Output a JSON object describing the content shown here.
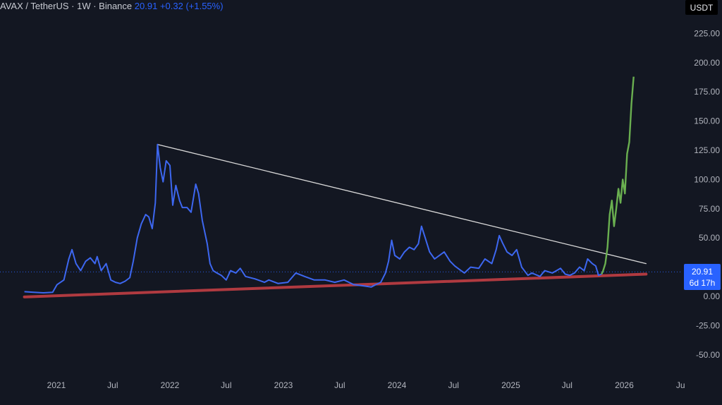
{
  "header": {
    "symbol": "AVAX / TetherUS · 1W · Binance",
    "price": "20.91",
    "change": "+0.32 (+1.55%)"
  },
  "price_scale": {
    "unit": "USDT",
    "last_price": "20.91",
    "countdown": "6d 17h"
  },
  "colors": {
    "background": "#131722",
    "price_line": "#3d67f0",
    "projection": "#6aaf50",
    "support": "#b03a40",
    "resistance": "#d9d9d9",
    "axis_text": "#b2b5be",
    "badge": "#2962ff"
  },
  "chart_data": {
    "type": "line",
    "title": "",
    "xlabel": "",
    "ylabel": "",
    "ylim": [
      -65,
      242
    ],
    "y_ticks": [
      "225.00",
      "200.00",
      "175.00",
      "150.00",
      "125.00",
      "100.00",
      "75.00",
      "50.00",
      "25.00",
      "0.00",
      "-25.00",
      "-50.00"
    ],
    "x_ticks": [
      "2021",
      "Jul",
      "2022",
      "Jul",
      "2023",
      "Jul",
      "2024",
      "Jul",
      "2025",
      "Jul",
      "2026",
      "Ju"
    ],
    "series": [
      {
        "x": [
          "2020-09-20",
          "2020-10-20",
          "2020-11-20",
          "2020-12-20",
          "2021-01-03",
          "2021-01-25",
          "2021-02-10",
          "2021-02-20",
          "2021-03-05",
          "2021-03-20",
          "2021-04-05",
          "2021-04-20",
          "2021-05-05",
          "2021-05-12",
          "2021-05-25",
          "2021-06-10",
          "2021-06-25",
          "2021-07-10",
          "2021-07-25",
          "2021-08-10",
          "2021-08-25",
          "2021-09-05",
          "2021-09-18",
          "2021-10-01",
          "2021-10-15",
          "2021-10-25",
          "2021-11-05",
          "2021-11-15",
          "2021-11-22",
          "2021-12-01",
          "2021-12-10",
          "2021-12-20",
          "2022-01-01",
          "2022-01-10",
          "2022-01-20",
          "2022-02-01",
          "2022-02-10",
          "2022-02-25",
          "2022-03-10",
          "2022-03-25",
          "2022-04-03",
          "2022-04-15",
          "2022-05-01",
          "2022-05-10",
          "2022-05-20",
          "2022-06-01",
          "2022-06-15",
          "2022-07-01",
          "2022-07-15",
          "2022-08-01",
          "2022-08-15",
          "2022-09-01",
          "2022-10-01",
          "2022-11-01",
          "2022-11-15",
          "2022-12-15",
          "2023-01-15",
          "2023-02-10",
          "2023-03-10",
          "2023-04-10",
          "2023-05-15",
          "2023-06-15",
          "2023-07-15",
          "2023-08-15",
          "2023-09-15",
          "2023-10-10",
          "2023-10-25",
          "2023-11-10",
          "2023-11-25",
          "2023-12-05",
          "2023-12-15",
          "2023-12-25",
          "2024-01-10",
          "2024-01-25",
          "2024-02-10",
          "2024-02-25",
          "2024-03-10",
          "2024-03-20",
          "2024-04-01",
          "2024-04-15",
          "2024-05-01",
          "2024-06-01",
          "2024-06-20",
          "2024-07-05",
          "2024-07-25",
          "2024-08-05",
          "2024-08-25",
          "2024-09-20",
          "2024-10-10",
          "2024-11-01",
          "2024-11-15",
          "2024-11-25",
          "2024-12-05",
          "2024-12-20",
          "2025-01-05",
          "2025-01-20",
          "2025-02-05",
          "2025-02-25",
          "2025-03-10",
          "2025-04-05",
          "2025-04-20",
          "2025-05-15",
          "2025-06-10",
          "2025-06-25",
          "2025-07-10",
          "2025-07-25",
          "2025-08-10",
          "2025-08-25",
          "2025-09-05",
          "2025-09-20",
          "2025-10-01",
          "2025-10-10",
          "2025-10-20"
        ],
        "y": [
          4,
          3.5,
          3,
          3.5,
          10,
          14,
          32,
          40,
          28,
          22,
          30,
          33,
          28,
          34,
          22,
          28,
          14,
          12,
          11,
          13,
          16,
          30,
          50,
          62,
          70,
          68,
          58,
          80,
          130,
          110,
          98,
          116,
          112,
          78,
          95,
          82,
          76,
          76,
          72,
          96,
          88,
          65,
          45,
          28,
          22,
          20,
          18,
          14,
          22,
          20,
          24,
          17,
          15,
          12,
          14,
          11,
          12,
          20,
          17,
          14,
          14,
          12,
          14,
          10,
          9,
          8,
          10,
          12,
          20,
          30,
          48,
          35,
          32,
          38,
          42,
          40,
          45,
          60,
          50,
          38,
          32,
          38,
          30,
          26,
          22,
          20,
          25,
          24,
          32,
          28,
          40,
          52,
          46,
          38,
          35,
          40,
          25,
          18,
          20,
          17,
          22,
          20,
          24,
          19,
          18,
          20,
          25,
          22,
          32,
          28,
          26,
          18,
          19
        ]
      },
      {
        "x": [
          "2025-10-20",
          "2025-10-25",
          "2025-11-01",
          "2025-11-08",
          "2025-11-15",
          "2025-11-22",
          "2025-11-29",
          "2025-12-06",
          "2025-12-13",
          "2025-12-20",
          "2025-12-27",
          "2026-01-03",
          "2026-01-10",
          "2026-01-17",
          "2026-01-24",
          "2026-01-31"
        ],
        "y": [
          19,
          22,
          28,
          42,
          70,
          82,
          60,
          75,
          92,
          80,
          100,
          88,
          122,
          132,
          165,
          188
        ]
      }
    ],
    "annotations": [
      {
        "type": "trendline",
        "label": "",
        "x": [
          "2021-11-22",
          "2026-03-12"
        ],
        "y": [
          130,
          28
        ]
      },
      {
        "type": "trendline",
        "label": "",
        "x": [
          "2020-09-20",
          "2026-03-12"
        ],
        "y": [
          -0.5,
          19
        ]
      }
    ]
  }
}
